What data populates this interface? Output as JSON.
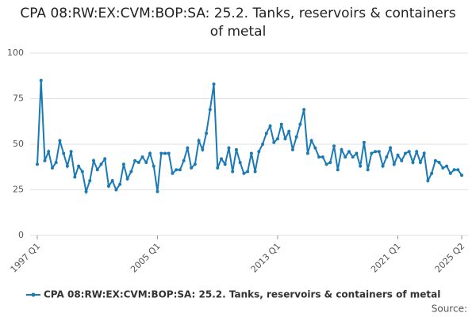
{
  "chart_data": {
    "type": "line",
    "title": "CPA 08:RW:EX:CVM:BOP:SA: 25.2. Tanks, reservoirs & containers of metal",
    "categories": [
      "1997 Q1",
      null,
      null,
      null,
      null,
      null,
      null,
      null,
      null,
      null,
      null,
      null,
      null,
      null,
      null,
      null,
      null,
      null,
      null,
      null,
      null,
      null,
      null,
      null,
      null,
      null,
      null,
      null,
      null,
      null,
      null,
      null,
      "2005 Q1",
      null,
      null,
      null,
      null,
      null,
      null,
      null,
      null,
      null,
      null,
      null,
      null,
      null,
      null,
      null,
      null,
      null,
      null,
      null,
      null,
      null,
      null,
      null,
      null,
      null,
      null,
      null,
      null,
      null,
      null,
      null,
      "2013 Q1",
      null,
      null,
      null,
      null,
      null,
      null,
      null,
      null,
      null,
      null,
      null,
      null,
      null,
      null,
      null,
      null,
      null,
      null,
      null,
      null,
      null,
      null,
      null,
      null,
      null,
      null,
      null,
      null,
      null,
      null,
      null,
      "2021 Q1",
      null,
      null,
      null,
      null,
      null,
      null,
      null,
      null,
      null,
      null,
      null,
      null,
      null,
      null,
      null,
      null,
      "2025 Q2"
    ],
    "series": [
      {
        "name": "CPA 08:RW:EX:CVM:BOP:SA: 25.2. Tanks, reservoirs & containers of metal",
        "color": "#1a7ab5",
        "values": [
          39,
          85,
          41,
          46,
          37,
          40,
          52,
          45,
          38,
          46,
          32,
          38,
          35,
          24,
          30,
          41,
          36,
          39,
          42,
          27,
          30,
          25,
          28,
          39,
          31,
          35,
          41,
          40,
          43,
          40,
          45,
          38,
          24,
          45,
          45,
          45,
          34,
          36,
          36,
          41,
          48,
          37,
          39,
          52,
          47,
          56,
          69,
          83,
          37,
          42,
          39,
          48,
          35,
          47,
          40,
          34,
          35,
          45,
          35,
          46,
          50,
          56,
          60,
          51,
          53,
          61,
          53,
          57,
          47,
          54,
          61,
          69,
          45,
          52,
          48,
          43,
          43,
          39,
          40,
          49,
          36,
          47,
          43,
          46,
          43,
          45,
          38,
          51,
          36,
          45,
          46,
          46,
          38,
          43,
          48,
          39,
          44,
          41,
          45,
          46,
          40,
          46,
          40,
          45,
          30,
          34,
          41,
          40,
          37,
          38,
          34,
          36,
          36,
          33
        ]
      }
    ],
    "ylim": [
      0,
      100
    ],
    "yticks": [
      0,
      25,
      50,
      75,
      100
    ],
    "grid": true,
    "legend": "bottom",
    "source_label": "Source:"
  }
}
